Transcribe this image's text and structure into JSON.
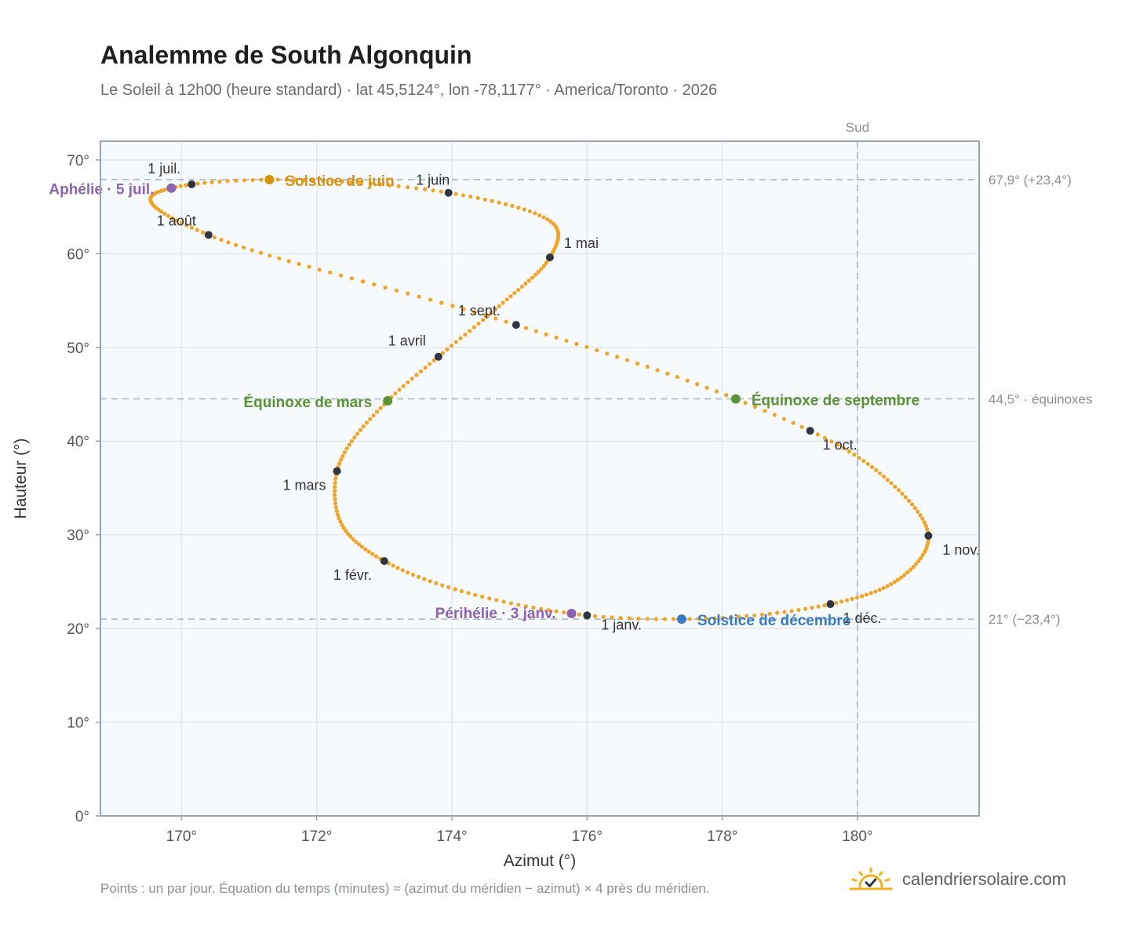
{
  "header": {
    "title": "Analemme de South Algonquin",
    "subtitle": "Le Soleil à 12h00 (heure standard) · lat 45,5124°, lon -78,1177° · America/Toronto · 2026"
  },
  "footer": {
    "note": "Points : un par jour. Équation du temps (minutes) ≈ (azimut du méridien − azimut) × 4 près du méridien.",
    "brand": "calendriersolaire.com"
  },
  "colors": {
    "curve": "#f0a52a",
    "month_point": "#2f3640",
    "june_solstice": "#d4920f",
    "december_solstice": "#3a7bbf",
    "equinox": "#5a9236",
    "apsis": "#8c62b3",
    "reference_line": "#a9b8c2",
    "plot_bg": "#f7fafc",
    "grid": "#e2e8ee",
    "frame": "#9aa4b2"
  },
  "chart_data": {
    "type": "scatter",
    "title": "Analemme de South Algonquin",
    "xlabel": "Azimut (°)",
    "ylabel": "Hauteur (°)",
    "xlim": [
      168.8,
      181.8
    ],
    "ylim": [
      0,
      72
    ],
    "xticks": [
      170,
      172,
      174,
      176,
      178,
      180
    ],
    "yticks": [
      0,
      10,
      20,
      30,
      40,
      50,
      60,
      70
    ],
    "x_tick_labels": [
      "170°",
      "172°",
      "174°",
      "176°",
      "178°",
      "180°"
    ],
    "y_tick_labels": [
      "0°",
      "10°",
      "20°",
      "30°",
      "40°",
      "50°",
      "60°",
      "70°"
    ],
    "grid": true,
    "meridian": {
      "azimuth": 180,
      "label": "Sud"
    },
    "reference_lines": [
      {
        "altitude": 67.9,
        "label": "67,9° (+23,4°)"
      },
      {
        "altitude": 44.5,
        "label": "44,5° · équinoxes"
      },
      {
        "altitude": 21.0,
        "label": "21° (−23,4°)"
      }
    ],
    "analemma_anchors": [
      {
        "day": 1,
        "az": 176.0,
        "alt": 21.4
      },
      {
        "day": 3,
        "az": 175.77,
        "alt": 21.6
      },
      {
        "day": 32,
        "az": 173.0,
        "alt": 27.2
      },
      {
        "day": 47,
        "az": 172.35,
        "alt": 31.4
      },
      {
        "day": 60,
        "az": 172.3,
        "alt": 36.8
      },
      {
        "day": 79,
        "az": 173.05,
        "alt": 44.3
      },
      {
        "day": 91,
        "az": 173.8,
        "alt": 49.0
      },
      {
        "day": 105,
        "az": 174.7,
        "alt": 54.4
      },
      {
        "day": 121,
        "az": 175.45,
        "alt": 59.6
      },
      {
        "day": 134,
        "az": 175.5,
        "alt": 63.2
      },
      {
        "day": 152,
        "az": 173.95,
        "alt": 66.5
      },
      {
        "day": 172,
        "az": 171.3,
        "alt": 67.9
      },
      {
        "day": 182,
        "az": 170.15,
        "alt": 67.4
      },
      {
        "day": 186,
        "az": 169.85,
        "alt": 67.0
      },
      {
        "day": 198,
        "az": 169.55,
        "alt": 65.5
      },
      {
        "day": 213,
        "az": 170.4,
        "alt": 62.0
      },
      {
        "day": 244,
        "az": 174.95,
        "alt": 52.4
      },
      {
        "day": 266,
        "az": 178.2,
        "alt": 44.5
      },
      {
        "day": 274,
        "az": 179.3,
        "alt": 41.1
      },
      {
        "day": 290,
        "az": 180.5,
        "alt": 35.5
      },
      {
        "day": 305,
        "az": 181.05,
        "alt": 29.9
      },
      {
        "day": 320,
        "az": 180.6,
        "alt": 25.2
      },
      {
        "day": 335,
        "az": 179.6,
        "alt": 22.6
      },
      {
        "day": 355,
        "az": 177.4,
        "alt": 21.0
      },
      {
        "day": 366,
        "az": 176.0,
        "alt": 21.4
      }
    ],
    "month_points": [
      {
        "label": "1 janv.",
        "az": 176.0,
        "alt": 21.4
      },
      {
        "label": "1 févr.",
        "az": 173.0,
        "alt": 27.2
      },
      {
        "label": "1 mars",
        "az": 172.3,
        "alt": 36.8
      },
      {
        "label": "1 avril",
        "az": 173.8,
        "alt": 49.0
      },
      {
        "label": "1 mai",
        "az": 175.45,
        "alt": 59.6
      },
      {
        "label": "1 juin",
        "az": 173.95,
        "alt": 66.5
      },
      {
        "label": "1 juil.",
        "az": 170.15,
        "alt": 67.4
      },
      {
        "label": "1 août",
        "az": 170.4,
        "alt": 62.0
      },
      {
        "label": "1 sept.",
        "az": 174.95,
        "alt": 52.4
      },
      {
        "label": "1 oct.",
        "az": 179.3,
        "alt": 41.1
      },
      {
        "label": "1 nov.",
        "az": 181.05,
        "alt": 29.9
      },
      {
        "label": "1 déc.",
        "az": 179.6,
        "alt": 22.6
      }
    ],
    "events": [
      {
        "label": "Solstice de juin",
        "az": 171.3,
        "alt": 67.9,
        "kind": "june_solstice"
      },
      {
        "label": "Aphélie · 5 juil.",
        "az": 169.85,
        "alt": 67.0,
        "kind": "apsis"
      },
      {
        "label": "Équinoxe de mars",
        "az": 173.05,
        "alt": 44.3,
        "kind": "equinox"
      },
      {
        "label": "Équinoxe de septembre",
        "az": 178.2,
        "alt": 44.5,
        "kind": "equinox"
      },
      {
        "label": "Périhélie · 3 janv.",
        "az": 175.77,
        "alt": 21.6,
        "kind": "apsis"
      },
      {
        "label": "Solstice de décembre",
        "az": 177.4,
        "alt": 21.0,
        "kind": "december_solstice"
      }
    ]
  }
}
